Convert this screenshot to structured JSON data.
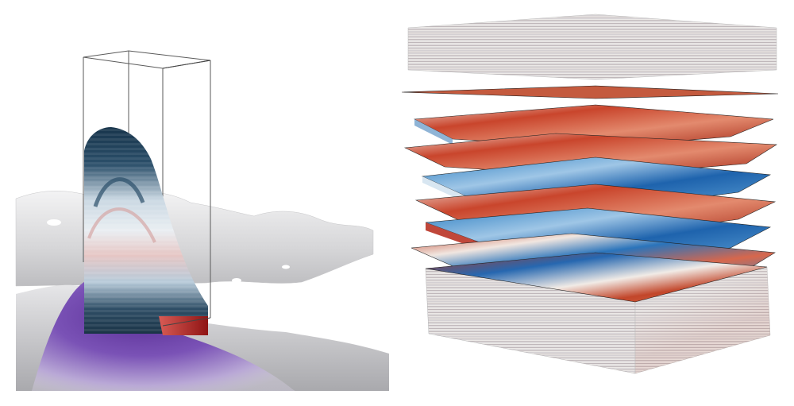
{
  "figure": {
    "panels": [
      {
        "id": "left",
        "depicts": "salt-body-visualization",
        "colors": {
          "surface": "#d9d9db",
          "salt_body": "#6a3fa3",
          "box_outline": "#555555",
          "section_dark": "#1b3a52",
          "section_light": "#dfe8ef",
          "section_red": "#a31c1c"
        }
      },
      {
        "id": "right",
        "depicts": "seismic-horizon-stack",
        "colors": {
          "positive": "#b5311d",
          "negative": "#1f6db3",
          "neutral": "#f2f0ee",
          "edge": "#222222"
        }
      }
    ]
  }
}
